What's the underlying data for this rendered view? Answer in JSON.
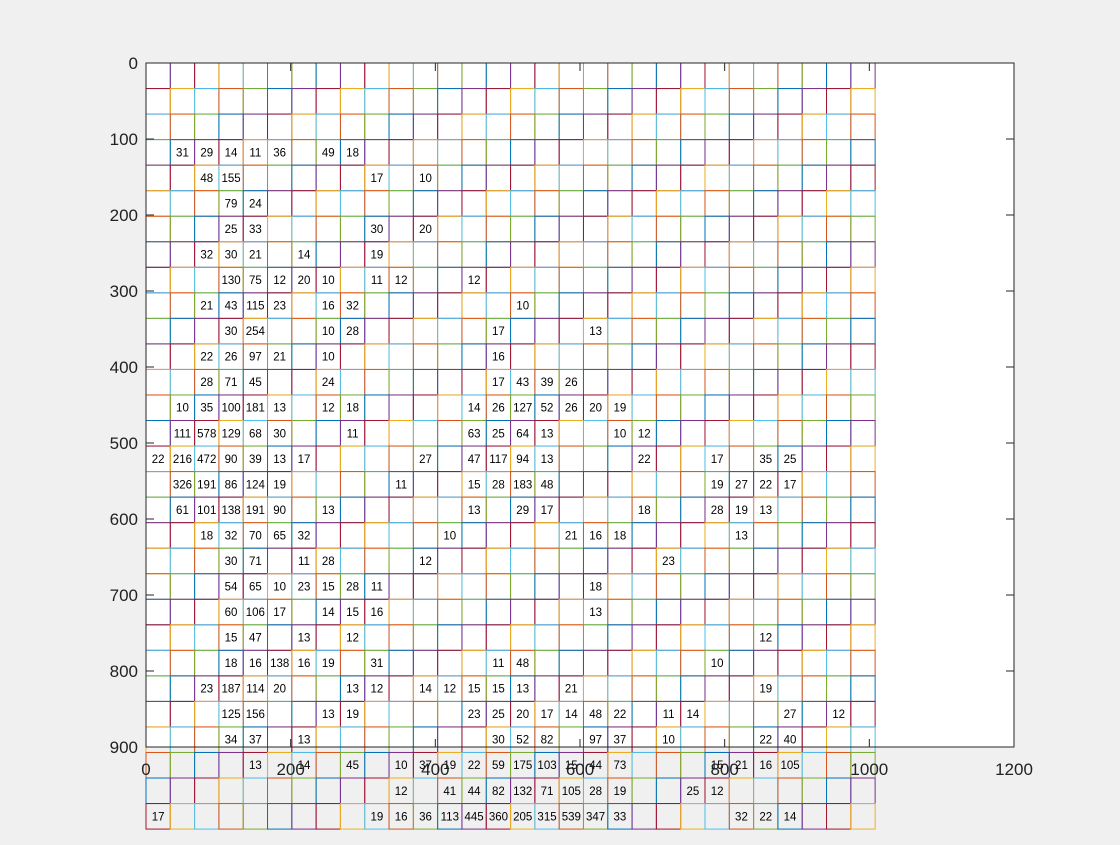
{
  "chart_data": {
    "type": "heatmap",
    "title": "",
    "xlabel": "",
    "ylabel": "",
    "xlim": [
      0,
      1200
    ],
    "ylim": [
      900,
      0
    ],
    "y_axis_reversed": true,
    "grid": false,
    "x_ticks": [
      "0",
      "200",
      "400",
      "600",
      "800",
      "1000",
      "1200"
    ],
    "y_ticks": [
      "0",
      "100",
      "200",
      "300",
      "400",
      "500",
      "600",
      "700",
      "800",
      "900"
    ],
    "cell_size": 33.6,
    "n_cols": 30,
    "n_rows": 30,
    "cell_colors": [
      "#0072BD",
      "#D95319",
      "#EDB120",
      "#7E2F8E",
      "#77AC30",
      "#4DBEEE",
      "#A2142F"
    ],
    "cell_counts": [
      [
        3,
        1,
        31
      ],
      [
        3,
        2,
        29
      ],
      [
        3,
        3,
        14
      ],
      [
        3,
        4,
        11
      ],
      [
        3,
        5,
        36
      ],
      [
        3,
        7,
        49
      ],
      [
        3,
        8,
        18
      ],
      [
        4,
        2,
        48
      ],
      [
        4,
        3,
        155
      ],
      [
        4,
        9,
        17
      ],
      [
        4,
        11,
        10
      ],
      [
        5,
        3,
        79
      ],
      [
        5,
        4,
        24
      ],
      [
        6,
        3,
        25
      ],
      [
        6,
        4,
        33
      ],
      [
        6,
        9,
        30
      ],
      [
        6,
        11,
        20
      ],
      [
        7,
        2,
        32
      ],
      [
        7,
        3,
        30
      ],
      [
        7,
        4,
        21
      ],
      [
        7,
        6,
        14
      ],
      [
        7,
        9,
        19
      ],
      [
        8,
        3,
        130
      ],
      [
        8,
        4,
        75
      ],
      [
        8,
        5,
        12
      ],
      [
        8,
        6,
        20
      ],
      [
        8,
        7,
        10
      ],
      [
        8,
        9,
        11
      ],
      [
        8,
        10,
        12
      ],
      [
        8,
        13,
        12
      ],
      [
        9,
        2,
        21
      ],
      [
        9,
        3,
        43
      ],
      [
        9,
        4,
        115
      ],
      [
        9,
        5,
        23
      ],
      [
        9,
        7,
        16
      ],
      [
        9,
        8,
        32
      ],
      [
        9,
        15,
        10
      ],
      [
        10,
        3,
        30
      ],
      [
        10,
        4,
        254
      ],
      [
        10,
        7,
        10
      ],
      [
        10,
        8,
        28
      ],
      [
        10,
        14,
        17
      ],
      [
        10,
        18,
        13
      ],
      [
        11,
        2,
        22
      ],
      [
        11,
        3,
        26
      ],
      [
        11,
        4,
        97
      ],
      [
        11,
        5,
        21
      ],
      [
        11,
        7,
        10
      ],
      [
        11,
        14,
        16
      ],
      [
        12,
        2,
        28
      ],
      [
        12,
        3,
        71
      ],
      [
        12,
        4,
        45
      ],
      [
        12,
        7,
        24
      ],
      [
        12,
        14,
        17
      ],
      [
        12,
        15,
        43
      ],
      [
        12,
        16,
        39
      ],
      [
        12,
        17,
        26
      ],
      [
        13,
        1,
        10
      ],
      [
        13,
        2,
        35
      ],
      [
        13,
        3,
        100
      ],
      [
        13,
        4,
        181
      ],
      [
        13,
        5,
        13
      ],
      [
        13,
        7,
        12
      ],
      [
        13,
        8,
        18
      ],
      [
        13,
        13,
        14
      ],
      [
        13,
        14,
        26
      ],
      [
        13,
        15,
        127
      ],
      [
        13,
        16,
        52
      ],
      [
        13,
        17,
        26
      ],
      [
        13,
        18,
        20
      ],
      [
        13,
        19,
        19
      ],
      [
        14,
        1,
        111
      ],
      [
        14,
        2,
        578
      ],
      [
        14,
        3,
        129
      ],
      [
        14,
        4,
        68
      ],
      [
        14,
        5,
        30
      ],
      [
        14,
        8,
        11
      ],
      [
        14,
        13,
        63
      ],
      [
        14,
        14,
        25
      ],
      [
        14,
        15,
        64
      ],
      [
        14,
        16,
        13
      ],
      [
        14,
        19,
        10
      ],
      [
        14,
        20,
        12
      ],
      [
        15,
        0,
        22
      ],
      [
        15,
        1,
        216
      ],
      [
        15,
        2,
        472
      ],
      [
        15,
        3,
        90
      ],
      [
        15,
        4,
        39
      ],
      [
        15,
        5,
        13
      ],
      [
        15,
        6,
        17
      ],
      [
        15,
        11,
        27
      ],
      [
        15,
        13,
        47
      ],
      [
        15,
        14,
        117
      ],
      [
        15,
        15,
        94
      ],
      [
        15,
        16,
        13
      ],
      [
        15,
        20,
        22
      ],
      [
        15,
        23,
        17
      ],
      [
        15,
        25,
        35
      ],
      [
        15,
        26,
        25
      ],
      [
        16,
        1,
        326
      ],
      [
        16,
        2,
        191
      ],
      [
        16,
        3,
        86
      ],
      [
        16,
        4,
        124
      ],
      [
        16,
        5,
        19
      ],
      [
        16,
        10,
        11
      ],
      [
        16,
        13,
        15
      ],
      [
        16,
        14,
        28
      ],
      [
        16,
        15,
        183
      ],
      [
        16,
        16,
        48
      ],
      [
        16,
        23,
        19
      ],
      [
        16,
        24,
        27
      ],
      [
        16,
        25,
        22
      ],
      [
        16,
        26,
        17
      ],
      [
        17,
        1,
        61
      ],
      [
        17,
        2,
        101
      ],
      [
        17,
        3,
        138
      ],
      [
        17,
        4,
        191
      ],
      [
        17,
        5,
        90
      ],
      [
        17,
        7,
        13
      ],
      [
        17,
        13,
        13
      ],
      [
        17,
        15,
        29
      ],
      [
        17,
        16,
        17
      ],
      [
        17,
        20,
        18
      ],
      [
        17,
        23,
        28
      ],
      [
        17,
        24,
        19
      ],
      [
        17,
        25,
        13
      ],
      [
        18,
        2,
        18
      ],
      [
        18,
        3,
        32
      ],
      [
        18,
        4,
        70
      ],
      [
        18,
        5,
        65
      ],
      [
        18,
        6,
        32
      ],
      [
        18,
        12,
        10
      ],
      [
        18,
        17,
        21
      ],
      [
        18,
        18,
        16
      ],
      [
        18,
        19,
        18
      ],
      [
        18,
        24,
        13
      ],
      [
        19,
        3,
        30
      ],
      [
        19,
        4,
        71
      ],
      [
        19,
        6,
        11
      ],
      [
        19,
        7,
        28
      ],
      [
        19,
        11,
        12
      ],
      [
        19,
        21,
        23
      ],
      [
        20,
        3,
        54
      ],
      [
        20,
        4,
        65
      ],
      [
        20,
        5,
        10
      ],
      [
        20,
        6,
        23
      ],
      [
        20,
        7,
        15
      ],
      [
        20,
        8,
        28
      ],
      [
        20,
        9,
        11
      ],
      [
        20,
        18,
        18
      ],
      [
        21,
        3,
        60
      ],
      [
        21,
        4,
        106
      ],
      [
        21,
        5,
        17
      ],
      [
        21,
        7,
        14
      ],
      [
        21,
        8,
        15
      ],
      [
        21,
        9,
        16
      ],
      [
        21,
        18,
        13
      ],
      [
        22,
        3,
        15
      ],
      [
        22,
        4,
        47
      ],
      [
        22,
        6,
        13
      ],
      [
        22,
        8,
        12
      ],
      [
        22,
        25,
        12
      ],
      [
        23,
        3,
        18
      ],
      [
        23,
        4,
        16
      ],
      [
        23,
        5,
        138
      ],
      [
        23,
        6,
        16
      ],
      [
        23,
        7,
        19
      ],
      [
        23,
        9,
        31
      ],
      [
        23,
        14,
        11
      ],
      [
        23,
        15,
        48
      ],
      [
        23,
        23,
        10
      ],
      [
        24,
        2,
        23
      ],
      [
        24,
        3,
        187
      ],
      [
        24,
        4,
        114
      ],
      [
        24,
        5,
        20
      ],
      [
        24,
        8,
        13
      ],
      [
        24,
        9,
        12
      ],
      [
        24,
        11,
        14
      ],
      [
        24,
        12,
        12
      ],
      [
        24,
        13,
        15
      ],
      [
        24,
        14,
        15
      ],
      [
        24,
        15,
        13
      ],
      [
        24,
        17,
        21
      ],
      [
        24,
        25,
        19
      ],
      [
        25,
        3,
        125
      ],
      [
        25,
        4,
        156
      ],
      [
        25,
        7,
        13
      ],
      [
        25,
        8,
        19
      ],
      [
        25,
        13,
        23
      ],
      [
        25,
        14,
        25
      ],
      [
        25,
        15,
        20
      ],
      [
        25,
        16,
        17
      ],
      [
        25,
        17,
        14
      ],
      [
        25,
        18,
        48
      ],
      [
        25,
        19,
        22
      ],
      [
        25,
        21,
        11
      ],
      [
        25,
        22,
        14
      ],
      [
        25,
        26,
        27
      ],
      [
        25,
        28,
        12
      ],
      [
        26,
        3,
        34
      ],
      [
        26,
        4,
        37
      ],
      [
        26,
        6,
        13
      ],
      [
        26,
        14,
        30
      ],
      [
        26,
        15,
        52
      ],
      [
        26,
        16,
        82
      ],
      [
        26,
        18,
        97
      ],
      [
        26,
        19,
        37
      ],
      [
        26,
        21,
        10
      ],
      [
        26,
        25,
        22
      ],
      [
        26,
        26,
        40
      ],
      [
        27,
        4,
        13
      ],
      [
        27,
        6,
        14
      ],
      [
        27,
        8,
        45
      ],
      [
        27,
        10,
        10
      ],
      [
        27,
        11,
        37
      ],
      [
        27,
        12,
        19
      ],
      [
        27,
        13,
        22
      ],
      [
        27,
        14,
        59
      ],
      [
        27,
        15,
        175
      ],
      [
        27,
        16,
        103
      ],
      [
        27,
        17,
        15
      ],
      [
        27,
        18,
        44
      ],
      [
        27,
        19,
        73
      ],
      [
        27,
        23,
        15
      ],
      [
        27,
        24,
        21
      ],
      [
        27,
        25,
        16
      ],
      [
        27,
        26,
        105
      ],
      [
        28,
        10,
        12
      ],
      [
        28,
        12,
        41
      ],
      [
        28,
        13,
        44
      ],
      [
        28,
        14,
        82
      ],
      [
        28,
        15,
        132
      ],
      [
        28,
        16,
        71
      ],
      [
        28,
        17,
        105
      ],
      [
        28,
        18,
        28
      ],
      [
        28,
        19,
        19
      ],
      [
        28,
        22,
        25
      ],
      [
        28,
        23,
        12
      ],
      [
        29,
        0,
        17
      ],
      [
        29,
        9,
        19
      ],
      [
        29,
        10,
        16
      ],
      [
        29,
        11,
        36
      ],
      [
        29,
        12,
        113
      ],
      [
        29,
        13,
        445
      ],
      [
        29,
        14,
        360
      ],
      [
        29,
        15,
        205
      ],
      [
        29,
        16,
        315
      ],
      [
        29,
        17,
        539
      ],
      [
        29,
        18,
        347
      ],
      [
        29,
        19,
        33
      ],
      [
        29,
        24,
        32
      ],
      [
        29,
        25,
        22
      ],
      [
        29,
        26,
        14
      ]
    ]
  }
}
